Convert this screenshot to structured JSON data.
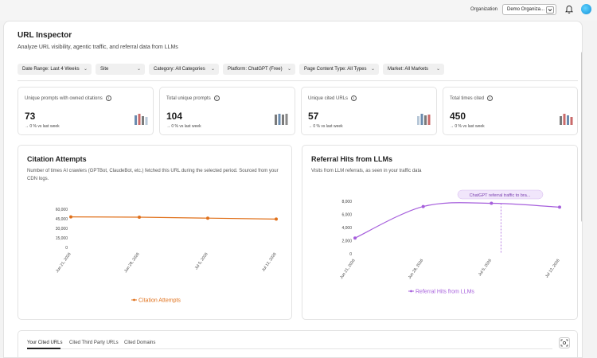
{
  "topbar": {
    "org_label": "Organization",
    "org_value": "Demo Organiza..."
  },
  "page": {
    "title": "URL Inspector",
    "subtitle": "Analyze URL visibility, agentic traffic, and referral data from LLMs"
  },
  "filters": [
    {
      "label": "Date Range: Last 4 Weeks"
    },
    {
      "label": "Site"
    },
    {
      "label": "Category: All Categories"
    },
    {
      "label": "Platform: ChatGPT (Free)"
    },
    {
      "label": "Page Content Type: All Types"
    },
    {
      "label": "Market: All Markets"
    }
  ],
  "kpis": [
    {
      "label": "Unique prompts with owned citations",
      "value": "73",
      "change": "0 % vs last week"
    },
    {
      "label": "Total unique prompts",
      "value": "104",
      "change": "0 % vs last week"
    },
    {
      "label": "Unique cited URLs",
      "value": "57",
      "change": "0 % vs last week"
    },
    {
      "label": "Total times cited",
      "value": "450",
      "change": "0 % vs last week"
    }
  ],
  "colors": {
    "citation": "#e0701a",
    "referral": "#a65fdc",
    "kpi_bars": [
      "#6b8caf",
      "#c96a6a",
      "#7a7a7a",
      "#b8c8d8"
    ]
  },
  "chart_data": [
    {
      "type": "line",
      "title": "Citation Attempts",
      "description": "Number of times AI crawlers (GPTBot, ClaudeBot, etc.) fetched this URL during the selected period. Sourced from your CDN logs.",
      "x": [
        "Jun 21, 2026",
        "Jun 28, 2026",
        "Jul 5, 2026",
        "Jul 12, 2026"
      ],
      "y_ticks": [
        "60,000",
        "45,000",
        "30,000",
        "15,000",
        "0"
      ],
      "ylim": [
        0,
        60000
      ],
      "series": [
        {
          "name": "Citation Attempts",
          "values": [
            48000,
            47500,
            46000,
            44500
          ]
        }
      ]
    },
    {
      "type": "line",
      "title": "Referral Hits from LLMs",
      "description": "Visits from LLM referrals, as seen in your traffic data",
      "x": [
        "Jun 21, 2026",
        "Jun 28, 2026",
        "Jul 5, 2026",
        "Jul 12, 2026"
      ],
      "y_ticks": [
        "8,000",
        "6,000",
        "4,000",
        "2,000",
        "0"
      ],
      "ylim": [
        0,
        8000
      ],
      "series": [
        {
          "name": "Referral Hits from LLMs",
          "values": [
            2400,
            7200,
            7700,
            7100
          ]
        }
      ],
      "annotation": "ChatGPT referral traffic to bra..."
    }
  ],
  "tabs": [
    "Your Cited URLs",
    "Cited Third Party URLs",
    "Cited Domains"
  ]
}
